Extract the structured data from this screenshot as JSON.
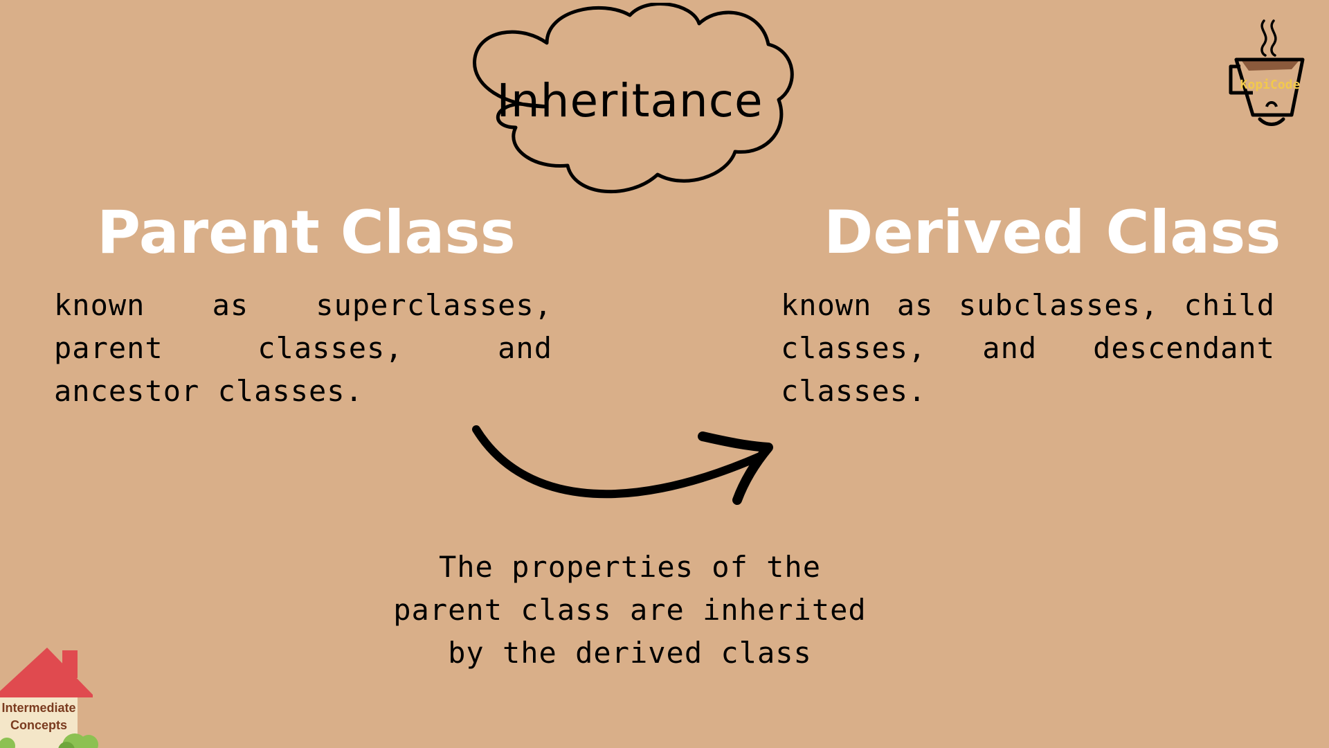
{
  "title": "Inheritance",
  "parent": {
    "heading": "Parent Class",
    "description": "known as superclasses, parent classes, and ancestor classes."
  },
  "derived": {
    "heading": "Derived Class",
    "description": "known as subclasses, child classes, and descendant classes."
  },
  "caption": {
    "line1": "The properties of the",
    "line2": "parent class are inherited",
    "line3": "by the derived class"
  },
  "logo": {
    "text": "KopiCode",
    "icon": "coffee-cup-icon"
  },
  "badge": {
    "line1": "Intermediate",
    "line2": "Concepts",
    "icon": "house-icon"
  },
  "colors": {
    "background": "#D9AF89",
    "heading": "#FFFFFF",
    "text": "#000000",
    "house_roof": "#E04A4F",
    "logo_text": "#F2C94C"
  }
}
